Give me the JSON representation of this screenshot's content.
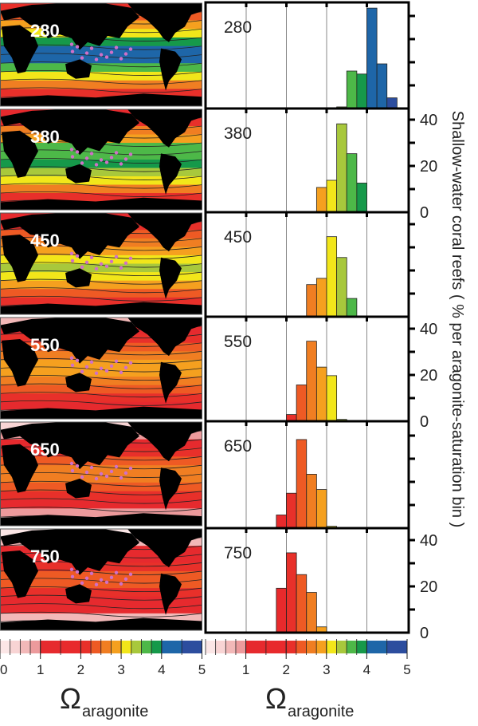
{
  "chart_data": {
    "type": "bar",
    "title": "",
    "xlabel": "Ω aragonite",
    "xlabel_symbol": "Ω",
    "xlabel_sub": "aragonite",
    "ylabel": "Shallow-water coral reefs ( % per aragonite-saturation bin )",
    "xlim": [
      0,
      5
    ],
    "ylim": [
      0,
      45
    ],
    "x_ticks": [
      "0",
      "1",
      "2",
      "3",
      "4",
      "5"
    ],
    "y_ticks": [
      "0",
      "20",
      "40"
    ],
    "bin_width": 0.25,
    "grid": "vertical lines at 1, 2, 3, 4",
    "series": [
      {
        "name": "280",
        "bins": [
          3.25,
          3.5,
          3.75,
          4.0,
          4.25,
          4.5
        ],
        "values": [
          0.7,
          16.2,
          14.9,
          43.4,
          19.3,
          4.6
        ]
      },
      {
        "name": "380",
        "bins": [
          2.75,
          3.0,
          3.25,
          3.5,
          3.75,
          4.0
        ],
        "values": [
          10.7,
          13.8,
          38.2,
          25.3,
          12.6,
          0.3
        ]
      },
      {
        "name": "450",
        "bins": [
          2.5,
          2.75,
          3.0,
          3.25,
          3.5
        ],
        "values": [
          13.9,
          16.6,
          34.6,
          25.6,
          7.9
        ]
      },
      {
        "name": "550",
        "bins": [
          2.0,
          2.25,
          2.5,
          2.75,
          3.0,
          3.25
        ],
        "values": [
          2.9,
          15.7,
          34.6,
          23.4,
          19.7,
          0.8
        ]
      },
      {
        "name": "650",
        "bins": [
          1.75,
          2.0,
          2.25,
          2.5,
          2.75,
          3.0
        ],
        "values": [
          5.7,
          15.1,
          38.3,
          23.3,
          16.7,
          0.8
        ]
      },
      {
        "name": "750",
        "bins": [
          1.75,
          2.0,
          2.25,
          2.5,
          2.75
        ],
        "values": [
          19.2,
          34.5,
          25.1,
          17.4,
          2.5
        ]
      }
    ],
    "colorbar": [
      {
        "from": 0,
        "to": 0.25,
        "color": "#fbe6e6"
      },
      {
        "from": 0.25,
        "to": 0.5,
        "color": "#f8d4d4"
      },
      {
        "from": 0.5,
        "to": 0.75,
        "color": "#f2b8b8"
      },
      {
        "from": 0.75,
        "to": 1.0,
        "color": "#ec9a9c"
      },
      {
        "from": 1.0,
        "to": 1.5,
        "color": "#e62a2e"
      },
      {
        "from": 1.5,
        "to": 2.0,
        "color": "#e82a2c"
      },
      {
        "from": 2.0,
        "to": 2.25,
        "color": "#e8302a"
      },
      {
        "from": 2.25,
        "to": 2.5,
        "color": "#ee5a24"
      },
      {
        "from": 2.5,
        "to": 2.75,
        "color": "#f07e22"
      },
      {
        "from": 2.75,
        "to": 3.0,
        "color": "#f5a01f"
      },
      {
        "from": 3.0,
        "to": 3.25,
        "color": "#f2e61a"
      },
      {
        "from": 3.25,
        "to": 3.5,
        "color": "#a8c83c"
      },
      {
        "from": 3.5,
        "to": 3.75,
        "color": "#4db848"
      },
      {
        "from": 3.75,
        "to": 4.0,
        "color": "#16994a"
      },
      {
        "from": 4.0,
        "to": 4.5,
        "color": "#1e66a8"
      },
      {
        "from": 4.5,
        "to": 5.0,
        "color": "#2c4d9e"
      }
    ],
    "maps": [
      {
        "name": "280",
        "bands": [
          "#e8302a",
          "#ee5a24",
          "#f5a01f",
          "#f2e61a",
          "#16994a",
          "#1e66a8",
          "#1e66a8",
          "#4db848",
          "#f2e61a",
          "#f07e22",
          "#e8302a",
          "#e62a2e"
        ]
      },
      {
        "name": "380",
        "bands": [
          "#e62a2e",
          "#e8302a",
          "#f07e22",
          "#f5a01f",
          "#4db848",
          "#4db848",
          "#16994a",
          "#a8c83c",
          "#f2e61a",
          "#f07e22",
          "#e8302a",
          "#e62a2e"
        ]
      },
      {
        "name": "450",
        "bands": [
          "#e62a2e",
          "#e8302a",
          "#ee5a24",
          "#f07e22",
          "#f5a01f",
          "#f2e61a",
          "#a8c83c",
          "#f2e61a",
          "#f5a01f",
          "#ee5a24",
          "#e8302a",
          "#e62a2e"
        ]
      },
      {
        "name": "550",
        "bands": [
          "#f2b8b8",
          "#e62a2e",
          "#e8302a",
          "#ee5a24",
          "#f07e22",
          "#f5a01f",
          "#f5a01f",
          "#f07e22",
          "#ee5a24",
          "#e8302a",
          "#e62a2e",
          "#f2b8b8"
        ]
      },
      {
        "name": "650",
        "bands": [
          "#f8d4d4",
          "#ec9a9c",
          "#e62a2e",
          "#e8302a",
          "#ee5a24",
          "#f07e22",
          "#f07e22",
          "#ee5a24",
          "#e8302a",
          "#e62a2e",
          "#ec9a9c",
          "#f8d4d4"
        ]
      },
      {
        "name": "750",
        "bands": [
          "#fbe6e6",
          "#f2b8b8",
          "#e62a2e",
          "#e62a2e",
          "#e8302a",
          "#ee5a24",
          "#ee5a24",
          "#e8302a",
          "#e62a2e",
          "#e62a2e",
          "#f2b8b8",
          "#fbe6e6"
        ]
      }
    ]
  }
}
